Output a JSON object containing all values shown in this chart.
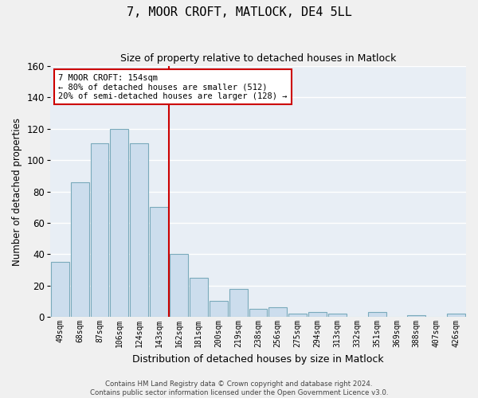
{
  "title": "7, MOOR CROFT, MATLOCK, DE4 5LL",
  "subtitle": "Size of property relative to detached houses in Matlock",
  "xlabel": "Distribution of detached houses by size in Matlock",
  "ylabel": "Number of detached properties",
  "categories": [
    "49sqm",
    "68sqm",
    "87sqm",
    "106sqm",
    "124sqm",
    "143sqm",
    "162sqm",
    "181sqm",
    "200sqm",
    "219sqm",
    "238sqm",
    "256sqm",
    "275sqm",
    "294sqm",
    "313sqm",
    "332sqm",
    "351sqm",
    "369sqm",
    "388sqm",
    "407sqm",
    "426sqm"
  ],
  "values": [
    35,
    86,
    111,
    120,
    111,
    70,
    40,
    25,
    10,
    18,
    5,
    6,
    2,
    3,
    2,
    0,
    3,
    0,
    1,
    0,
    2
  ],
  "bar_color": "#ccdded",
  "bar_edge_color": "#7aaabb",
  "background_color": "#e8eef5",
  "grid_color": "#ffffff",
  "ylim": [
    0,
    160
  ],
  "yticks": [
    0,
    20,
    40,
    60,
    80,
    100,
    120,
    140,
    160
  ],
  "annotation_title": "7 MOOR CROFT: 154sqm",
  "annotation_line1": "← 80% of detached houses are smaller (512)",
  "annotation_line2": "20% of semi-detached houses are larger (128) →",
  "annotation_box_color": "#ffffff",
  "annotation_box_edge": "#cc0000",
  "vline_color": "#cc0000",
  "footer1": "Contains HM Land Registry data © Crown copyright and database right 2024.",
  "footer2": "Contains public sector information licensed under the Open Government Licence v3.0."
}
